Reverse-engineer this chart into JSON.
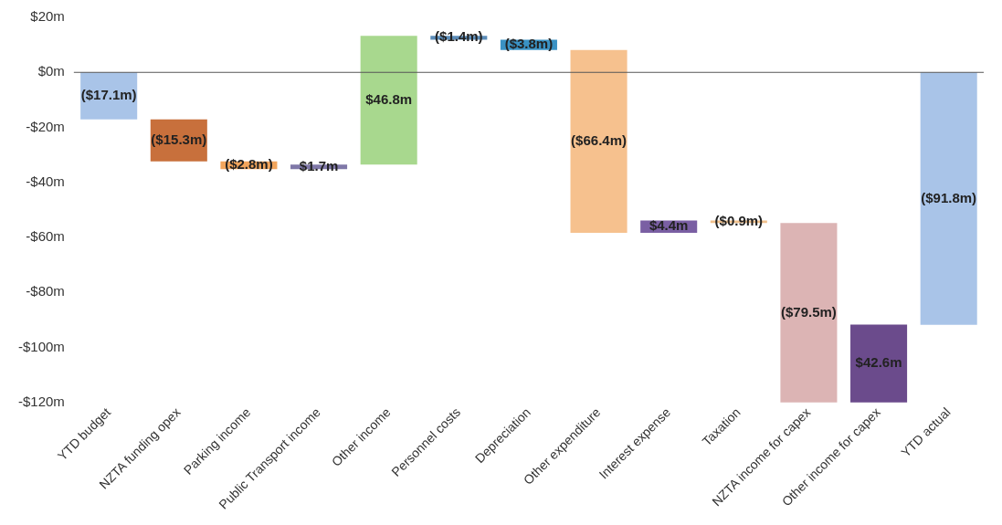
{
  "chart_data": {
    "type": "bar",
    "categories": [
      "YTD budget",
      "NZTA funding opex",
      "Parking income",
      "Public Transport income",
      "Other income",
      "Personnel costs",
      "Depreciation",
      "Other expenditure",
      "Interest expense",
      "Taxation",
      "NZTA income for capex",
      "Other income for capex",
      "YTD actual"
    ],
    "base": [
      0,
      -17.1,
      -32.4,
      -35.2,
      -33.5,
      13.3,
      11.9,
      8.1,
      -58.3,
      -53.9,
      -54.8,
      -134.3,
      0
    ],
    "values": [
      -17.1,
      -15.3,
      -2.8,
      1.7,
      46.8,
      -1.4,
      -3.8,
      -66.4,
      4.4,
      -0.9,
      -79.5,
      42.6,
      -91.8
    ],
    "colors": [
      "#a9c4e8",
      "#c8703c",
      "#f2a55c",
      "#7f78a8",
      "#a8d88e",
      "#5b8cb8",
      "#3a92c4",
      "#f6c18e",
      "#7a5fa3",
      "#f0c08c",
      "#dcb4b4",
      "#6b4b8c",
      "#a9c4e8"
    ],
    "value_labels": [
      "($17.1m)",
      "($15.3m)",
      "($2.8m)",
      "$1.7m",
      "$46.8m",
      "($1.4m)",
      "($3.8m)",
      "($66.4m)",
      "$4.4m",
      "($0.9m)",
      "($79.5m)",
      "$42.6m",
      "($91.8m)"
    ],
    "ylim": [
      -120,
      20
    ],
    "yticks": [
      {
        "value": 20,
        "label": "$20m"
      },
      {
        "value": 0,
        "label": "$0m"
      },
      {
        "value": -20,
        "label": "-$20m"
      },
      {
        "value": -40,
        "label": "-$40m"
      },
      {
        "value": -60,
        "label": "-$60m"
      },
      {
        "value": -80,
        "label": "-$80m"
      },
      {
        "value": -100,
        "label": "-$100m"
      },
      {
        "value": -120,
        "label": "-$120m"
      }
    ],
    "ref_lines": [
      {
        "axis": "y",
        "value": 0,
        "color": "#555555"
      }
    ],
    "grid": false,
    "legend": false
  }
}
